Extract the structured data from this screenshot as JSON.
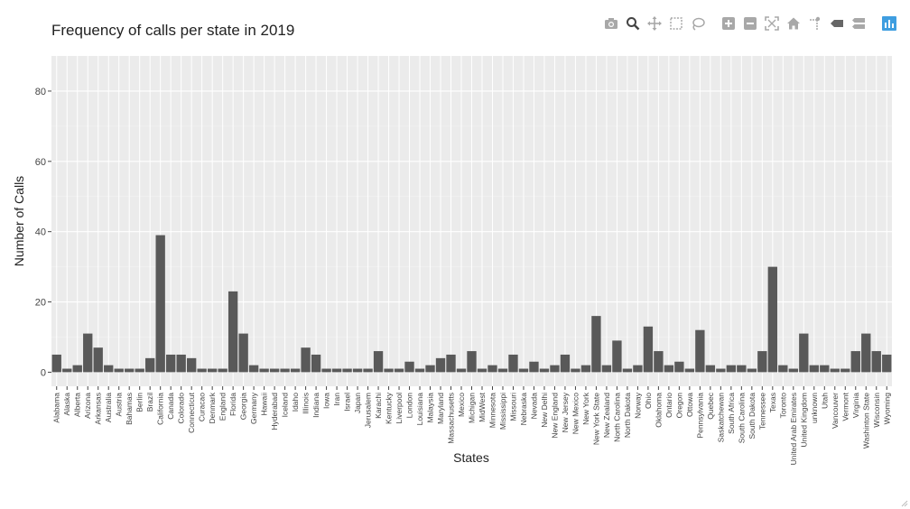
{
  "chart_data": {
    "type": "bar",
    "title": "Frequency of calls per state in 2019",
    "xlabel": "States",
    "ylabel": "Number of Calls",
    "ylim": [
      -4,
      90
    ],
    "yticks": [
      0,
      20,
      40,
      60,
      80
    ],
    "grid": true,
    "categories": [
      "Alabama",
      "Alaska",
      "Alberta",
      "Arizona",
      "Arkansas",
      "Australia",
      "Austria",
      "Bahamas",
      "Berlin",
      "Brazil",
      "California",
      "Canada",
      "Colorado",
      "Connecticut",
      "Curacao",
      "Denmark",
      "England",
      "Florida",
      "Georgia",
      "Germany",
      "Hawaii",
      "Hyderabad",
      "Iceland",
      "Idaho",
      "Illinois",
      "Indiana",
      "Iowa",
      "Iran",
      "Israel",
      "Japan",
      "Jerusalem",
      "Karachi",
      "Kentucky",
      "Liverpool",
      "London",
      "Louisiana",
      "Malaysia",
      "Maryland",
      "Massachusetts",
      "Mexico",
      "Michigan",
      "MidWest",
      "Minnesota",
      "Mississippi",
      "Missouri",
      "Nebraska",
      "Nevada",
      "New Delhi",
      "New England",
      "New Jersey",
      "New Mexico",
      "New York",
      "New York State",
      "New Zealand",
      "North Carolina",
      "North Dakota",
      "Norway",
      "Ohio",
      "Oklahoma",
      "Ontario",
      "Oregon",
      "Ottowa",
      "Pennsylvania",
      "Quebec",
      "Saskatchewan",
      "South Africa",
      "South Carolina",
      "South Dakota",
      "Tennessee",
      "Texas",
      "Toronto",
      "United Arab Emirates",
      "United Kingdom",
      "unknown",
      "Utah",
      "Vancouver",
      "Vermont",
      "Virginia",
      "Washinton State",
      "Wisconsin",
      "Wyoming"
    ],
    "values": [
      5,
      1,
      2,
      11,
      7,
      2,
      1,
      1,
      1,
      4,
      39,
      5,
      5,
      4,
      1,
      1,
      1,
      23,
      11,
      2,
      1,
      1,
      1,
      1,
      7,
      5,
      1,
      1,
      1,
      1,
      1,
      6,
      1,
      1,
      3,
      1,
      2,
      4,
      5,
      1,
      6,
      1,
      2,
      1,
      5,
      1,
      3,
      1,
      2,
      5,
      1,
      2,
      16,
      2,
      9,
      1,
      2,
      13,
      6,
      2,
      3,
      1,
      12,
      2,
      1,
      2,
      2,
      1,
      6,
      30,
      2,
      1,
      11,
      2,
      2,
      1,
      1,
      6,
      11,
      6,
      5
    ]
  },
  "toolbar": {
    "icons": [
      "camera-icon",
      "zoom-icon",
      "pan-icon",
      "box-select-icon",
      "lasso-select-icon",
      "zoom-in-icon",
      "zoom-out-icon",
      "autoscale-icon",
      "home-icon",
      "spike-lines-icon",
      "hover-closest-icon",
      "hover-compare-icon",
      "plotly-logo-icon"
    ]
  },
  "colors": {
    "panel": "#ebebeb",
    "grid": "#ffffff",
    "bar": "#595959",
    "logo": "#3f9ee0",
    "icon": "#a8a8a8"
  }
}
